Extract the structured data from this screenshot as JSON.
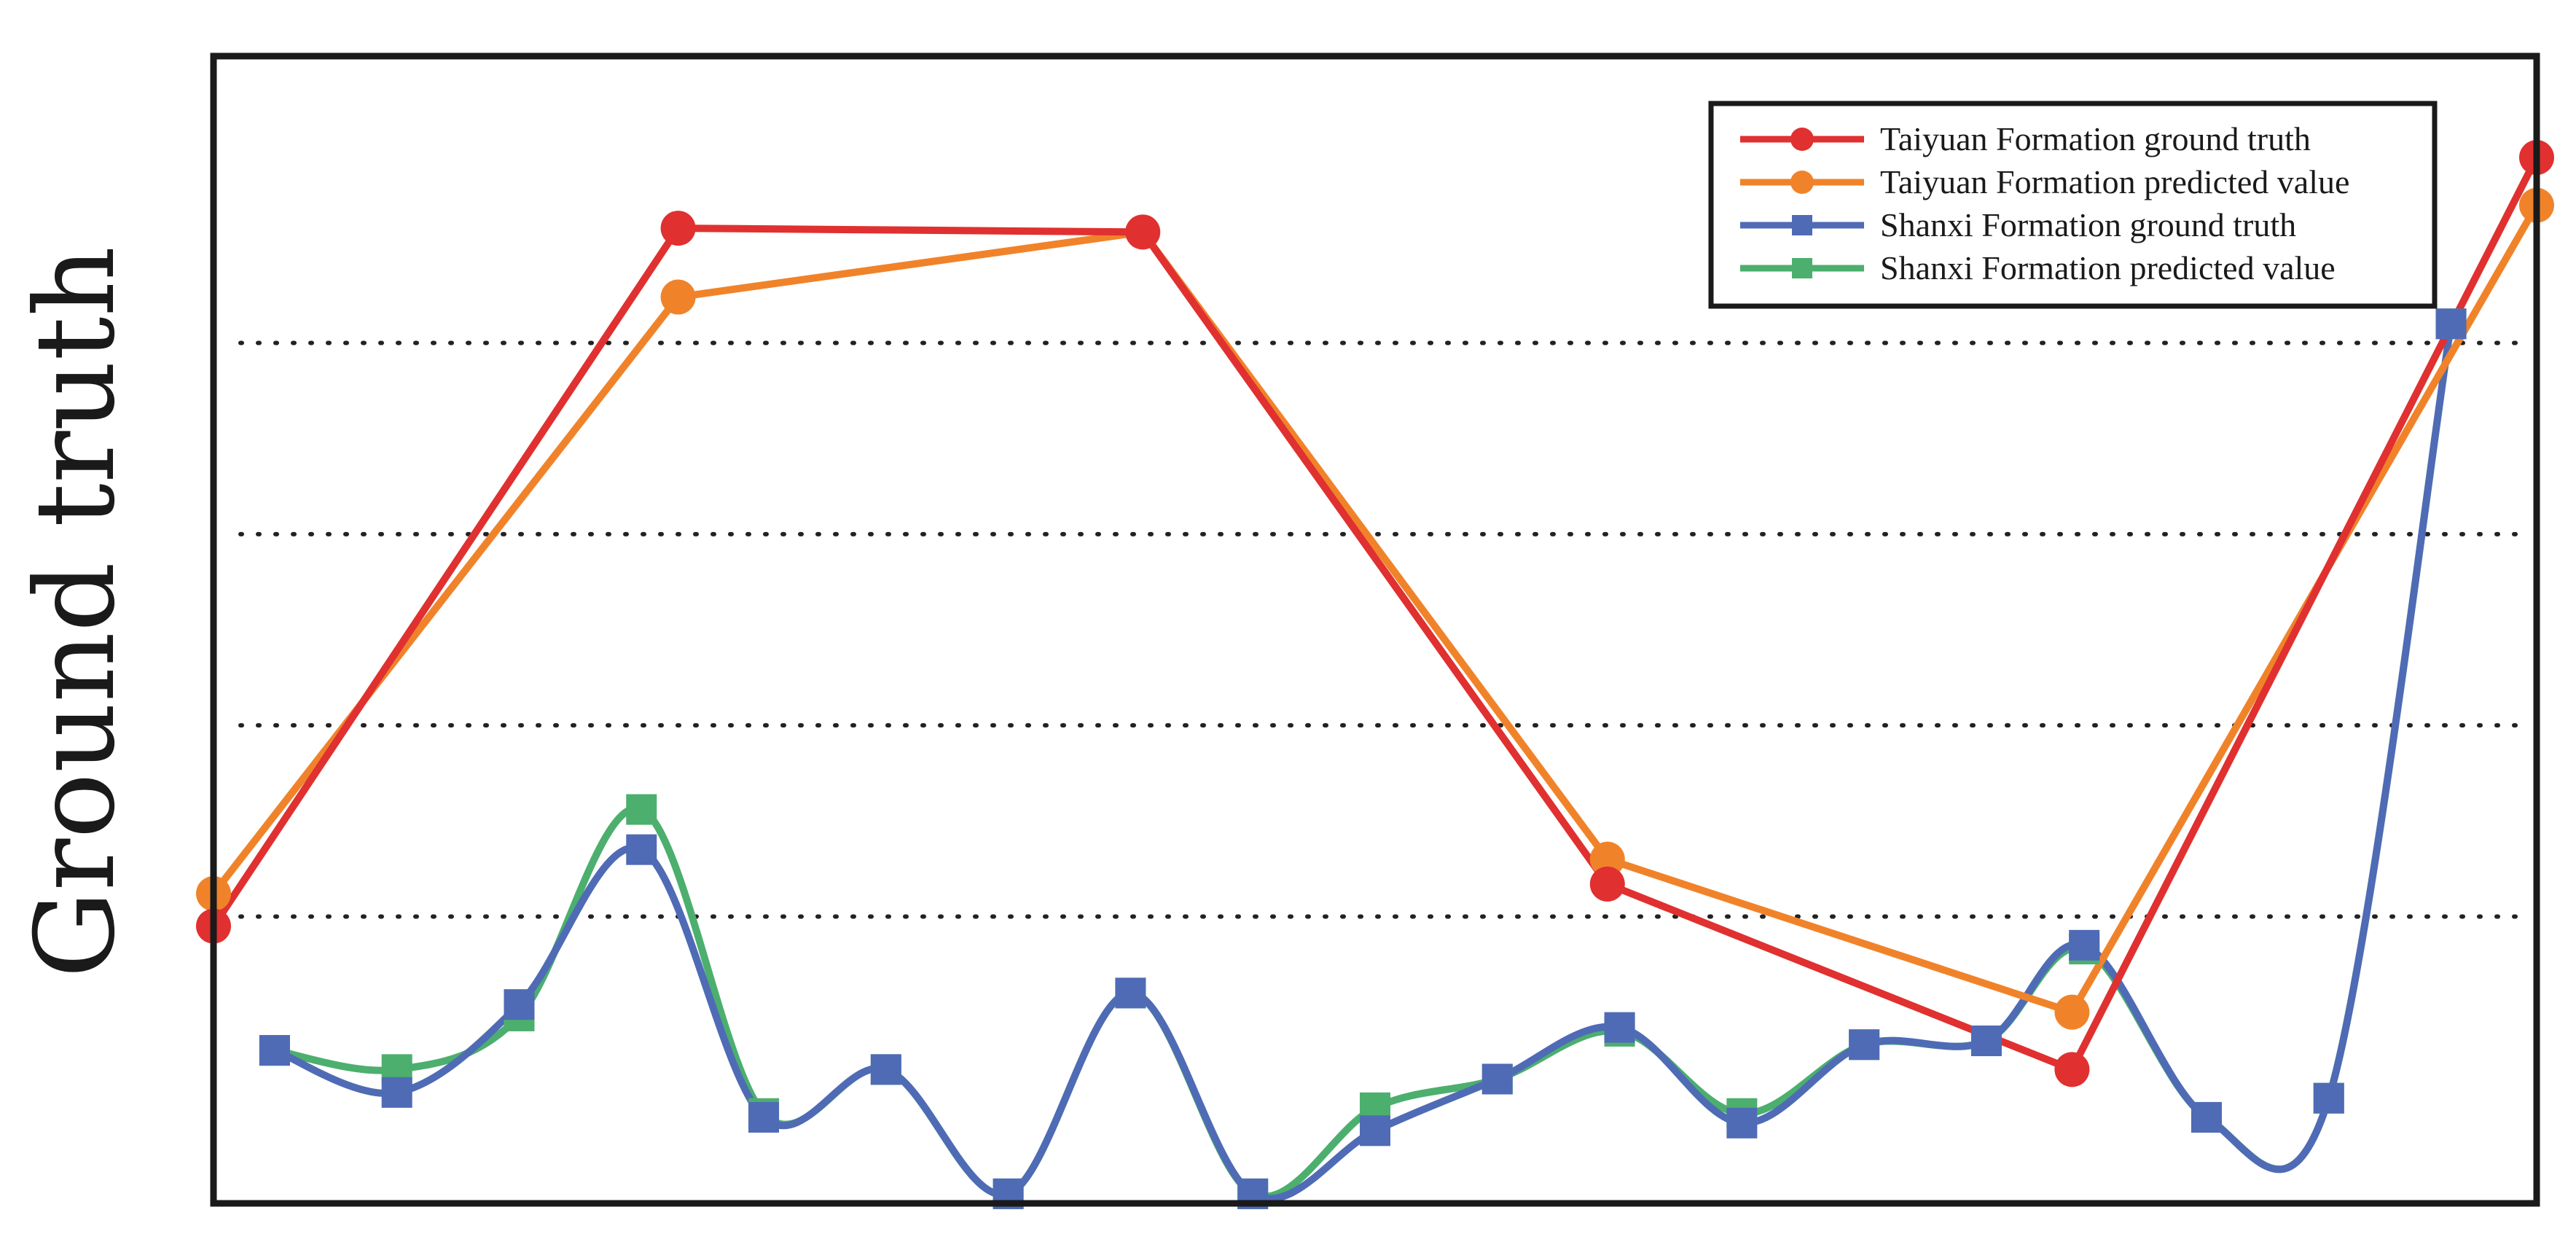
{
  "chart_data": {
    "type": "line",
    "title": "",
    "xlabel": "",
    "ylabel": "Ground truth",
    "ylim": [
      -0.5,
      5.5
    ],
    "grid": "horizontal-dotted",
    "legend_position": "top-right",
    "series": [
      {
        "name": "Taiyuan Formation ground truth",
        "color": "#e03030",
        "marker": "circle",
        "x": [
          0,
          3.8,
          7.6,
          11.4,
          15.2,
          19
        ],
        "values": [
          0.95,
          4.6,
          4.58,
          1.17,
          0.2,
          4.97
        ]
      },
      {
        "name": "Taiyuan Formation predicted value",
        "color": "#f0832a",
        "marker": "circle",
        "x": [
          0,
          3.8,
          7.6,
          11.4,
          15.2,
          19
        ],
        "values": [
          1.12,
          4.24,
          4.58,
          1.3,
          0.5,
          4.72
        ]
      },
      {
        "name": "Shanxi Formation ground truth",
        "color": "#4f6bb5",
        "marker": "square",
        "x": [
          0.5,
          1.5,
          2.5,
          3.5,
          4.5,
          5.5,
          6.5,
          7.5,
          8.5,
          9.5,
          10.5,
          11.5,
          12.5,
          13.5,
          14.5,
          15.3,
          16.3,
          17.3,
          18.3
        ],
        "values": [
          0.3,
          0.08,
          0.54,
          1.35,
          -0.05,
          0.2,
          -0.45,
          0.6,
          -0.45,
          -0.12,
          0.15,
          0.42,
          -0.08,
          0.33,
          0.35,
          0.85,
          -0.05,
          0.05,
          4.1
        ]
      },
      {
        "name": "Shanxi Formation predicted value",
        "color": "#4caf6e",
        "marker": "square",
        "x": [
          0.5,
          1.5,
          2.5,
          3.5,
          4.5,
          5.5,
          6.5,
          7.5,
          8.5,
          9.5,
          10.5,
          11.5,
          12.5,
          13.5,
          14.5,
          15.3,
          16.3,
          17.3,
          18.3
        ],
        "values": [
          0.3,
          0.2,
          0.48,
          1.56,
          -0.03,
          0.2,
          -0.45,
          0.6,
          -0.45,
          0.0,
          0.15,
          0.4,
          -0.03,
          0.33,
          0.35,
          0.83,
          -0.05,
          0.05,
          4.1
        ]
      }
    ]
  }
}
